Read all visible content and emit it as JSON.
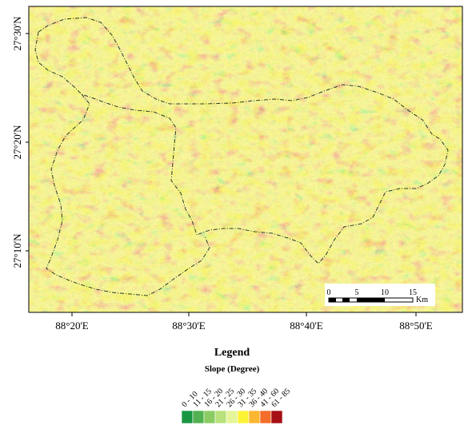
{
  "map": {
    "lat_labels": [
      "27°30'N",
      "27°20'N",
      "27°10'N"
    ],
    "lon_labels": [
      "88°20'E",
      "88°30'E",
      "88°40'E",
      "88°50'E"
    ]
  },
  "scale_bar": {
    "ticks": [
      "0",
      "5",
      "10",
      "15"
    ],
    "unit": "Km"
  },
  "legend": {
    "title": "Legend",
    "subtitle": "Slope (Degree)",
    "classes": [
      {
        "label": "0 - 10",
        "color": "#1a9641"
      },
      {
        "label": "11 - 15",
        "color": "#52b151"
      },
      {
        "label": "16 - 20",
        "color": "#8acc62"
      },
      {
        "label": "21 - 25",
        "color": "#b8e27b"
      },
      {
        "label": "26 - 30",
        "color": "#e6f59a"
      },
      {
        "label": "31 - 35",
        "color": "#fdf335"
      },
      {
        "label": "36 - 40",
        "color": "#fdb631"
      },
      {
        "label": "41 - 60",
        "color": "#f46d2b"
      },
      {
        "label": "61 - 85",
        "color": "#a50f15"
      }
    ]
  }
}
